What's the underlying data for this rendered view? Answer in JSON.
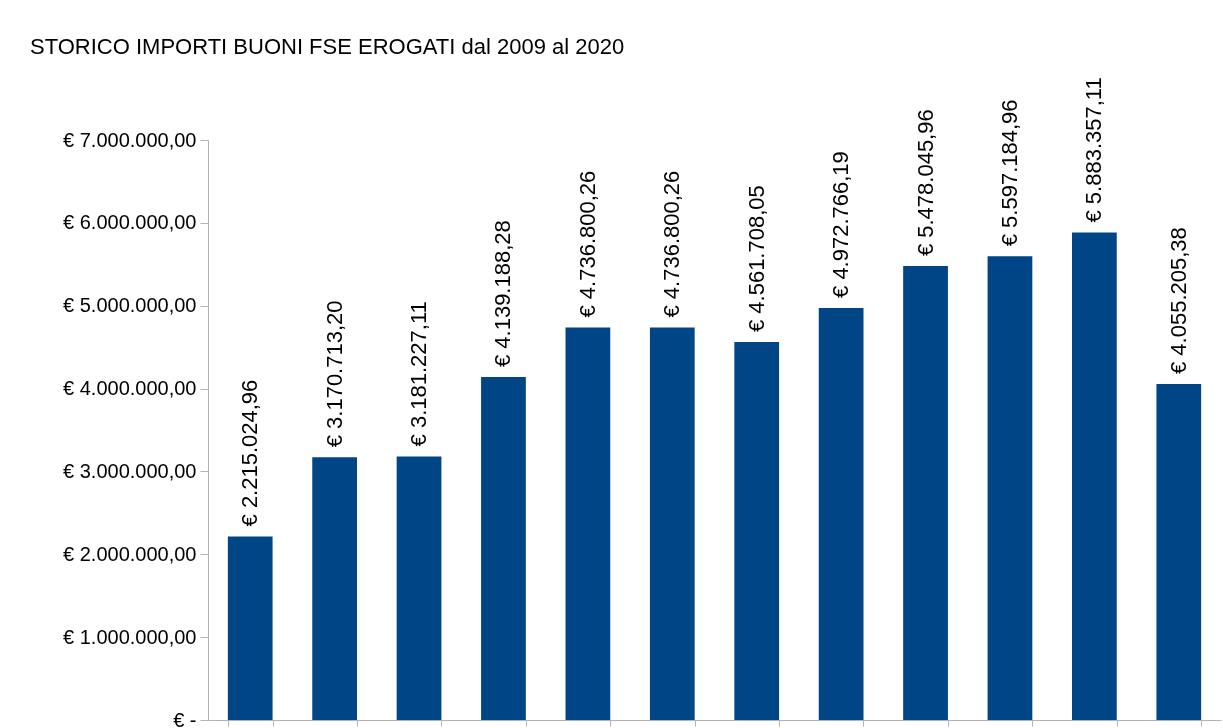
{
  "chart_data": {
    "type": "bar",
    "title": "STORICO IMPORTI BUONI FSE EROGATI dal 2009 al 2020",
    "categories": [
      null,
      null,
      null,
      null,
      null,
      null,
      null,
      null,
      null,
      null,
      null,
      null
    ],
    "values": [
      2215024.96,
      3170713.2,
      3181227.11,
      4139188.28,
      4736800.26,
      4736800.26,
      4561708.05,
      4972766.19,
      5478045.96,
      5597184.96,
      5883357.11,
      4055205.38
    ],
    "value_labels": [
      "€ 2.215.024,96",
      "€ 3.170.713,20",
      "€ 3.181.227,11",
      "€ 4.139.188,28",
      "€ 4.736.800,26",
      "€ 4.736.800,26",
      "€ 4.561.708,05",
      "€ 4.972.766,19",
      "€ 5.478.045,96",
      "€ 5.597.184,96",
      "€ 5.883.357,11",
      "€ 4.055.205,38"
    ],
    "color": "#004586",
    "ylim": [
      0,
      7000000
    ],
    "yticks": [
      {
        "value": 0,
        "label": "€ -"
      },
      {
        "value": 1000000,
        "label": "€ 1.000.000,00"
      },
      {
        "value": 2000000,
        "label": "€ 2.000.000,00"
      },
      {
        "value": 3000000,
        "label": "€ 3.000.000,00"
      },
      {
        "value": 4000000,
        "label": "€ 4.000.000,00"
      },
      {
        "value": 5000000,
        "label": "€ 5.000.000,00"
      },
      {
        "value": 6000000,
        "label": "€ 6.000.000,00"
      },
      {
        "value": 7000000,
        "label": "€ 7.000.000,00"
      }
    ],
    "tick_labels": "y",
    "grid": false
  }
}
